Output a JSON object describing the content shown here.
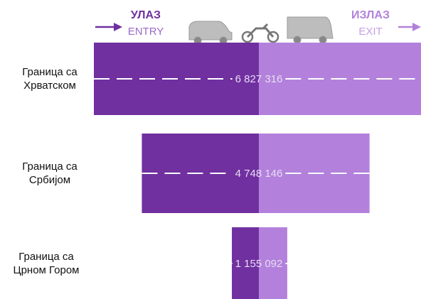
{
  "chart_data": {
    "type": "butterfly",
    "categories": [
      "Граница са\nХрватском",
      "Граница са\nСрбијом",
      "Граница са\nЦрном Гором"
    ],
    "series": [
      {
        "name": "ENTRY",
        "title": "УЛАЗ",
        "color": "#7030a0",
        "values": [
          3440000,
          2440000,
          563000
        ]
      },
      {
        "name": "EXIT",
        "title": "ИЗЛАЗ",
        "color": "#b381dc",
        "values": [
          3387000,
          2308000,
          592000
        ]
      }
    ],
    "totals": [
      6827316,
      4748146,
      1155092
    ],
    "total_labels": [
      "6 827 316",
      "4 748 146",
      "1 155 092"
    ]
  }
}
